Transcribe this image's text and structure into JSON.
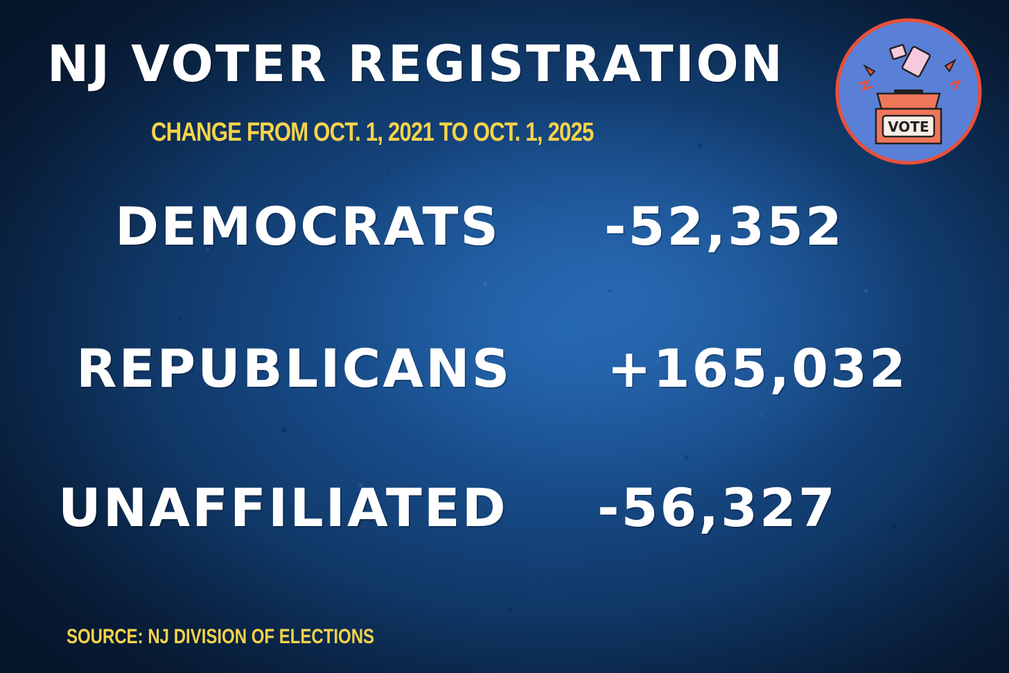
{
  "title": "NJ VOTER REGISTRATION",
  "subtitle": "CHANGE FROM OCT. 1, 2021 TO OCT. 1, 2025",
  "rows": [
    {
      "label": "DEMOCRATS",
      "value": "-52,352"
    },
    {
      "label": "REPUBLICANS",
      "value": "+165,032"
    },
    {
      "label": "UNAFFILIATED",
      "value": "-56,327"
    }
  ],
  "source": "SOURCE: NJ DIVISION OF ELECTIONS",
  "badge": {
    "text": "VOTE",
    "icon": "ballot-box-icon"
  },
  "colors": {
    "background": "#174a86",
    "title": "#ffffff",
    "accent_yellow": "#f6d34a",
    "badge_fill": "#5a7fd6",
    "badge_ring": "#e8503a",
    "ballot_box": "#f0765a"
  }
}
